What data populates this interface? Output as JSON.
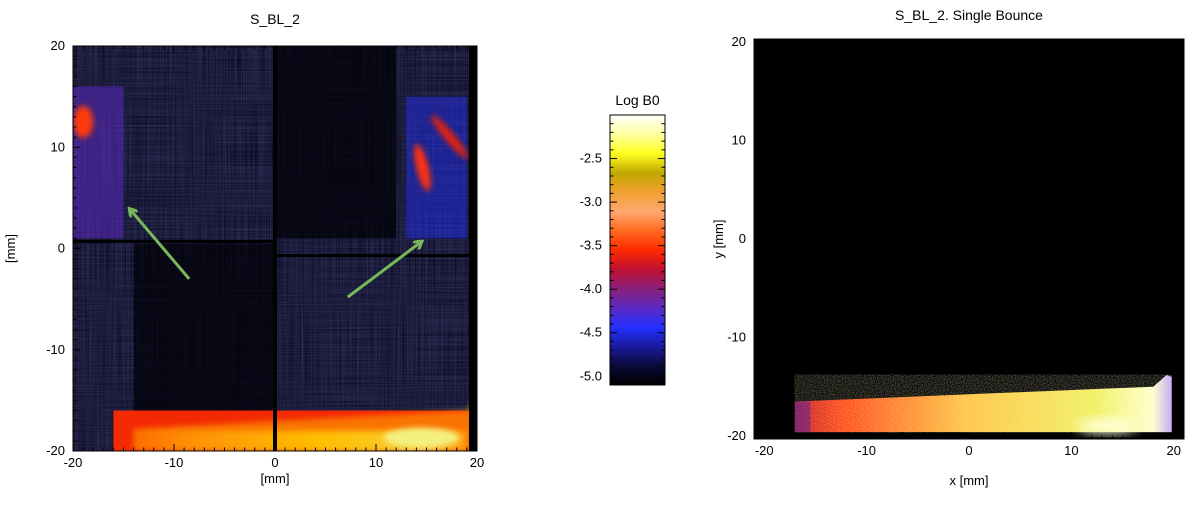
{
  "chart_data": [
    {
      "type": "heatmap",
      "title": "S_BL_2",
      "xlabel": "[mm]",
      "ylabel": "[mm]",
      "xlim": [
        -20,
        20
      ],
      "ylim": [
        -20,
        20
      ],
      "x_ticks": [
        -20,
        -10,
        0,
        10,
        20
      ],
      "y_ticks": [
        20,
        10,
        0,
        -10,
        -20
      ],
      "hot_regions": [
        {
          "x": [
            -20,
            -15
          ],
          "y": [
            1,
            16
          ],
          "level": -3.9
        },
        {
          "x": [
            13,
            19
          ],
          "y": [
            1,
            13
          ],
          "level": -3.6
        },
        {
          "x": [
            -16,
            20
          ],
          "y": [
            -20,
            -16
          ],
          "level": -3.1
        }
      ],
      "annotations": [
        {
          "type": "arrow",
          "color": "#79b85a",
          "from": [
            -8.5,
            -3
          ],
          "to": [
            -14.3,
            3.8
          ]
        },
        {
          "type": "arrow",
          "color": "#79b85a",
          "from": [
            7.2,
            -4.8
          ],
          "to": [
            14.4,
            0.6
          ]
        }
      ]
    },
    {
      "type": "colorbar",
      "title": "Log B0",
      "range": [
        -5.1,
        -2.0
      ],
      "tick_labels": [
        "-2.5",
        "-3.0",
        "-3.5",
        "-4.0",
        "-4.5",
        "-5.0"
      ],
      "tick_values": [
        -2.5,
        -3.0,
        -3.5,
        -4.0,
        -4.5,
        -5.0
      ],
      "colors": [
        "#000000",
        "#0a0a3a",
        "#1a1aa0",
        "#2430ff",
        "#5b2ac0",
        "#8a1f7a",
        "#c01030",
        "#ff2a00",
        "#ff6a20",
        "#ffa870",
        "#f0a030",
        "#c0a800",
        "#ffff20",
        "#ffffa0",
        "#ffffff"
      ]
    },
    {
      "type": "heatmap",
      "title": "S_BL_2. Single Bounce",
      "xlabel": "x [mm]",
      "ylabel": "y [mm]",
      "xlim": [
        -21,
        21
      ],
      "ylim": [
        -20.3,
        20.3
      ],
      "x_ticks": [
        -20,
        -10,
        0,
        10,
        20
      ],
      "y_ticks": [
        20,
        10,
        0,
        -10,
        -20
      ],
      "hot_regions": [
        {
          "x": [
            -17,
            20
          ],
          "y": [
            -20,
            -14
          ],
          "level": -3.1
        }
      ]
    }
  ]
}
